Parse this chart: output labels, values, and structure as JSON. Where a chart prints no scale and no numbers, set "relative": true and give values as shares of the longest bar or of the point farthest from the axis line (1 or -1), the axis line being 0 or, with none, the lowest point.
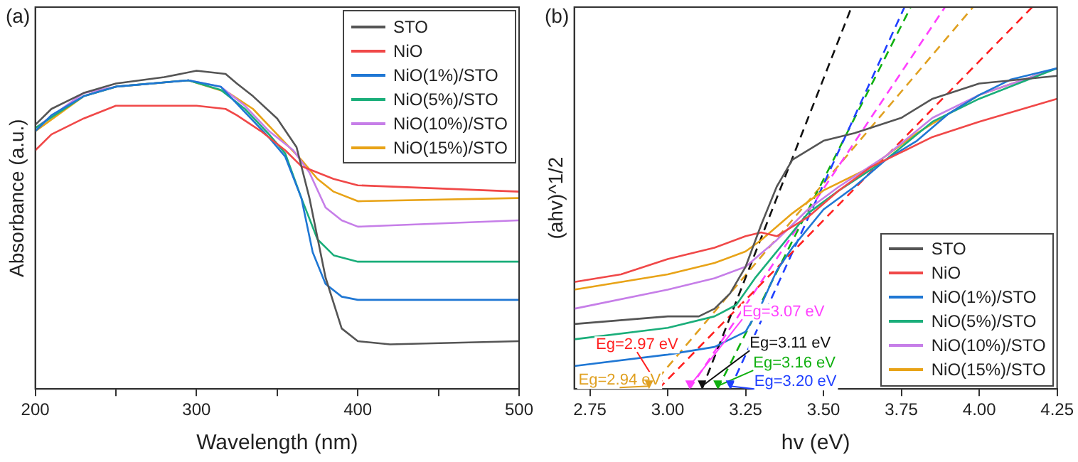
{
  "chart_data": [
    {
      "type": "line",
      "title": "(a)",
      "xlabel": "Wavelength (nm)",
      "ylabel": "Absorbance (a.u.)",
      "relative": true,
      "legend": "top right",
      "xlim": [
        200,
        500
      ],
      "xticks": [
        200,
        {
          "value": 250,
          "label": null
        },
        300,
        {
          "value": 350,
          "label": null
        },
        400,
        {
          "value": 450,
          "label": null
        },
        500
      ],
      "series": [
        {
          "name": "STO",
          "color": "#555555",
          "x": [
            200,
            210,
            230,
            250,
            280,
            300,
            318,
            325,
            335,
            350,
            362,
            370,
            380,
            390,
            400,
            420,
            500
          ],
          "values": [
            0.83,
            0.88,
            0.93,
            0.96,
            0.98,
            1.0,
            0.99,
            0.96,
            0.92,
            0.85,
            0.76,
            0.6,
            0.35,
            0.19,
            0.15,
            0.14,
            0.15
          ]
        },
        {
          "name": "NiO",
          "color": "#f04848",
          "x": [
            200,
            210,
            230,
            250,
            300,
            318,
            325,
            340,
            355,
            365,
            375,
            385,
            400,
            450,
            500
          ],
          "values": [
            0.75,
            0.8,
            0.85,
            0.89,
            0.89,
            0.88,
            0.86,
            0.81,
            0.75,
            0.7,
            0.68,
            0.66,
            0.64,
            0.63,
            0.62
          ]
        },
        {
          "name": "NiO(1%)/STO",
          "color": "#1f77d4",
          "x": [
            200,
            210,
            230,
            250,
            295,
            315,
            330,
            345,
            355,
            365,
            372,
            380,
            390,
            400,
            500
          ],
          "values": [
            0.81,
            0.86,
            0.92,
            0.95,
            0.97,
            0.95,
            0.87,
            0.79,
            0.73,
            0.6,
            0.43,
            0.33,
            0.29,
            0.28,
            0.28
          ]
        },
        {
          "name": "NiO(5%)/STO",
          "color": "#1aae7a",
          "x": [
            200,
            230,
            250,
            295,
            315,
            330,
            345,
            355,
            365,
            375,
            385,
            400,
            500
          ],
          "values": [
            0.82,
            0.92,
            0.95,
            0.97,
            0.94,
            0.88,
            0.8,
            0.74,
            0.6,
            0.47,
            0.42,
            0.4,
            0.4
          ]
        },
        {
          "name": "NiO(10%)/STO",
          "color": "#c67ee8",
          "x": [
            200,
            230,
            250,
            295,
            315,
            330,
            345,
            360,
            370,
            380,
            390,
            400,
            500
          ],
          "values": [
            0.82,
            0.93,
            0.95,
            0.97,
            0.95,
            0.89,
            0.81,
            0.75,
            0.68,
            0.57,
            0.53,
            0.51,
            0.53
          ]
        },
        {
          "name": "NiO(15%)/STO",
          "color": "#e8a317",
          "x": [
            200,
            230,
            250,
            295,
            320,
            335,
            350,
            365,
            375,
            385,
            400,
            500
          ],
          "values": [
            0.81,
            0.92,
            0.95,
            0.97,
            0.93,
            0.88,
            0.8,
            0.72,
            0.66,
            0.62,
            0.59,
            0.6
          ]
        }
      ]
    },
    {
      "type": "line",
      "title": "(b)",
      "xlabel": "hv (eV)",
      "ylabel": "(ahv)^1/2",
      "relative": true,
      "legend": "bottom right",
      "xlim": [
        2.7,
        4.25
      ],
      "xticks": [
        2.75,
        {
          "value": 3,
          "label": "3.00"
        },
        3.25,
        {
          "value": 3.5,
          "label": "3.50"
        },
        3.75,
        {
          "value": 4,
          "label": "4.00"
        },
        4.25
      ],
      "series": [
        {
          "name": "STO",
          "color": "#555555",
          "x": [
            2.7,
            3.0,
            3.1,
            3.15,
            3.2,
            3.25,
            3.3,
            3.35,
            3.4,
            3.5,
            3.6,
            3.75,
            3.85,
            4.0,
            4.25
          ],
          "values": [
            0.17,
            0.19,
            0.19,
            0.21,
            0.25,
            0.32,
            0.43,
            0.53,
            0.6,
            0.65,
            0.67,
            0.71,
            0.76,
            0.8,
            0.82
          ]
        },
        {
          "name": "NiO",
          "color": "#f04848",
          "x": [
            2.7,
            2.85,
            3.0,
            3.15,
            3.25,
            3.3,
            3.35,
            3.45,
            3.55,
            3.65,
            3.75,
            3.85,
            4.0,
            4.25
          ],
          "values": [
            0.28,
            0.3,
            0.34,
            0.37,
            0.4,
            0.41,
            0.4,
            0.45,
            0.52,
            0.58,
            0.62,
            0.66,
            0.7,
            0.76
          ]
        },
        {
          "name": "NiO(1%)/STO",
          "color": "#1f77d4",
          "x": [
            2.7,
            3.0,
            3.15,
            3.25,
            3.3,
            3.35,
            3.4,
            3.5,
            3.6,
            3.7,
            3.8,
            3.9,
            4.0,
            4.1,
            4.25
          ],
          "values": [
            0.06,
            0.09,
            0.11,
            0.15,
            0.22,
            0.31,
            0.37,
            0.47,
            0.53,
            0.6,
            0.65,
            0.72,
            0.77,
            0.81,
            0.84
          ]
        },
        {
          "name": "NiO(5%)/STO",
          "color": "#1aae7a",
          "x": [
            2.7,
            3.0,
            3.15,
            3.22,
            3.28,
            3.35,
            3.45,
            3.55,
            3.7,
            3.85,
            4.0,
            4.25
          ],
          "values": [
            0.13,
            0.16,
            0.19,
            0.22,
            0.29,
            0.36,
            0.46,
            0.52,
            0.6,
            0.7,
            0.76,
            0.84
          ]
        },
        {
          "name": "NiO(10%)/STO",
          "color": "#c67ee8",
          "x": [
            2.7,
            3.0,
            3.15,
            3.25,
            3.35,
            3.45,
            3.55,
            3.7,
            3.85,
            4.0,
            4.25
          ],
          "values": [
            0.21,
            0.26,
            0.29,
            0.32,
            0.39,
            0.47,
            0.53,
            0.61,
            0.71,
            0.77,
            0.84
          ]
        },
        {
          "name": "NiO(15%)/STO",
          "color": "#e8a317",
          "x": [
            2.7,
            3.0,
            3.15,
            3.25,
            3.3,
            3.4,
            3.5,
            3.65,
            3.8,
            4.0,
            4.25
          ],
          "values": [
            0.26,
            0.3,
            0.33,
            0.36,
            0.39,
            0.46,
            0.52,
            0.58,
            0.67,
            0.77,
            0.84
          ]
        },
        {
          "type": "line",
          "color": "#111111",
          "line_style": "dashed",
          "x": [
            3.11,
            3.59
          ],
          "values": [
            0,
            1
          ]
        },
        {
          "type": "line",
          "color": "#ff2020",
          "line_style": "dashed",
          "x": [
            2.97,
            4.17
          ],
          "values": [
            0,
            1
          ]
        },
        {
          "type": "line",
          "color": "#2040ff",
          "line_style": "dashed",
          "x": [
            3.2,
            3.76
          ],
          "values": [
            0,
            1
          ]
        },
        {
          "type": "line",
          "color": "#10b010",
          "line_style": "dashed",
          "x": [
            3.16,
            3.78
          ],
          "values": [
            0,
            1
          ]
        },
        {
          "type": "line",
          "color": "#ff40ff",
          "line_style": "dashed",
          "x": [
            3.07,
            3.89
          ],
          "values": [
            0,
            1
          ]
        },
        {
          "type": "line",
          "color": "#e0a020",
          "line_style": "dashed",
          "x": [
            2.94,
            3.98
          ],
          "values": [
            0,
            1
          ]
        }
      ],
      "annotations": [
        {
          "text": "Eg=2.97 eV",
          "x": 2.97,
          "y": 0
        },
        {
          "text": "Eg=2.94 eV",
          "x": 2.94,
          "y": 0
        },
        {
          "text": "Eg=3.07 eV",
          "x": 3.07,
          "y": 0
        },
        {
          "text": "Eg=3.11 eV",
          "x": 3.11,
          "y": 0
        },
        {
          "text": "Eg=3.16 eV",
          "x": 3.16,
          "y": 0
        },
        {
          "text": "Eg=3.20 eV",
          "x": 3.2,
          "y": 0
        }
      ]
    }
  ]
}
